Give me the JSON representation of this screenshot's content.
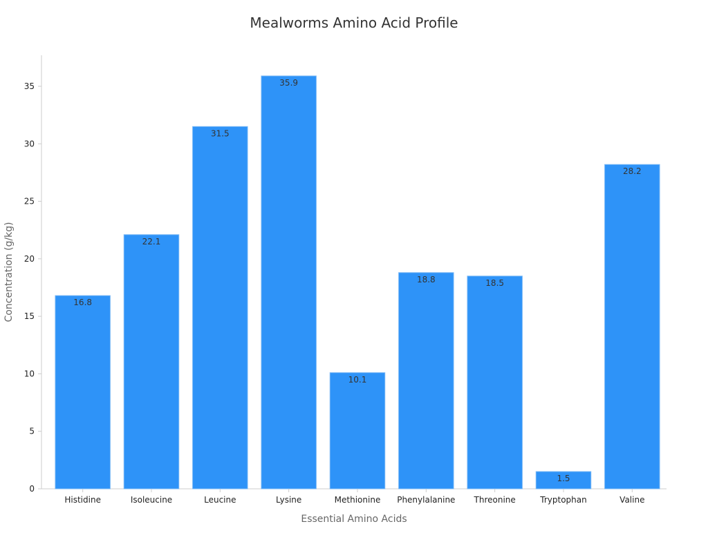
{
  "chart_data": {
    "type": "bar",
    "title": "Mealworms Amino Acid Profile",
    "xlabel": "Essential Amino Acids",
    "ylabel": "Concentration (g/kg)",
    "categories": [
      "Histidine",
      "Isoleucine",
      "Leucine",
      "Lysine",
      "Methionine",
      "Phenylalanine",
      "Threonine",
      "Tryptophan",
      "Valine"
    ],
    "values": [
      16.8,
      22.1,
      31.5,
      35.9,
      10.1,
      18.8,
      18.5,
      1.5,
      28.2
    ],
    "data_labels": [
      "16.8",
      "22.1",
      "31.5",
      "35.9",
      "10.1",
      "18.8",
      "18.5",
      "1.5",
      "28.2"
    ],
    "yticks": [
      0,
      5,
      10,
      15,
      20,
      25,
      30,
      35
    ],
    "ylim": [
      0,
      37.7
    ],
    "grid": false,
    "legend": "none",
    "colors": {
      "bar_fill": "#2e93f8",
      "bar_edge": "#7ab8f5",
      "axis": "#cccccc",
      "tick_text": "#222222",
      "axis_label": "#666666",
      "title": "#333333",
      "data_label": "#333333"
    }
  }
}
